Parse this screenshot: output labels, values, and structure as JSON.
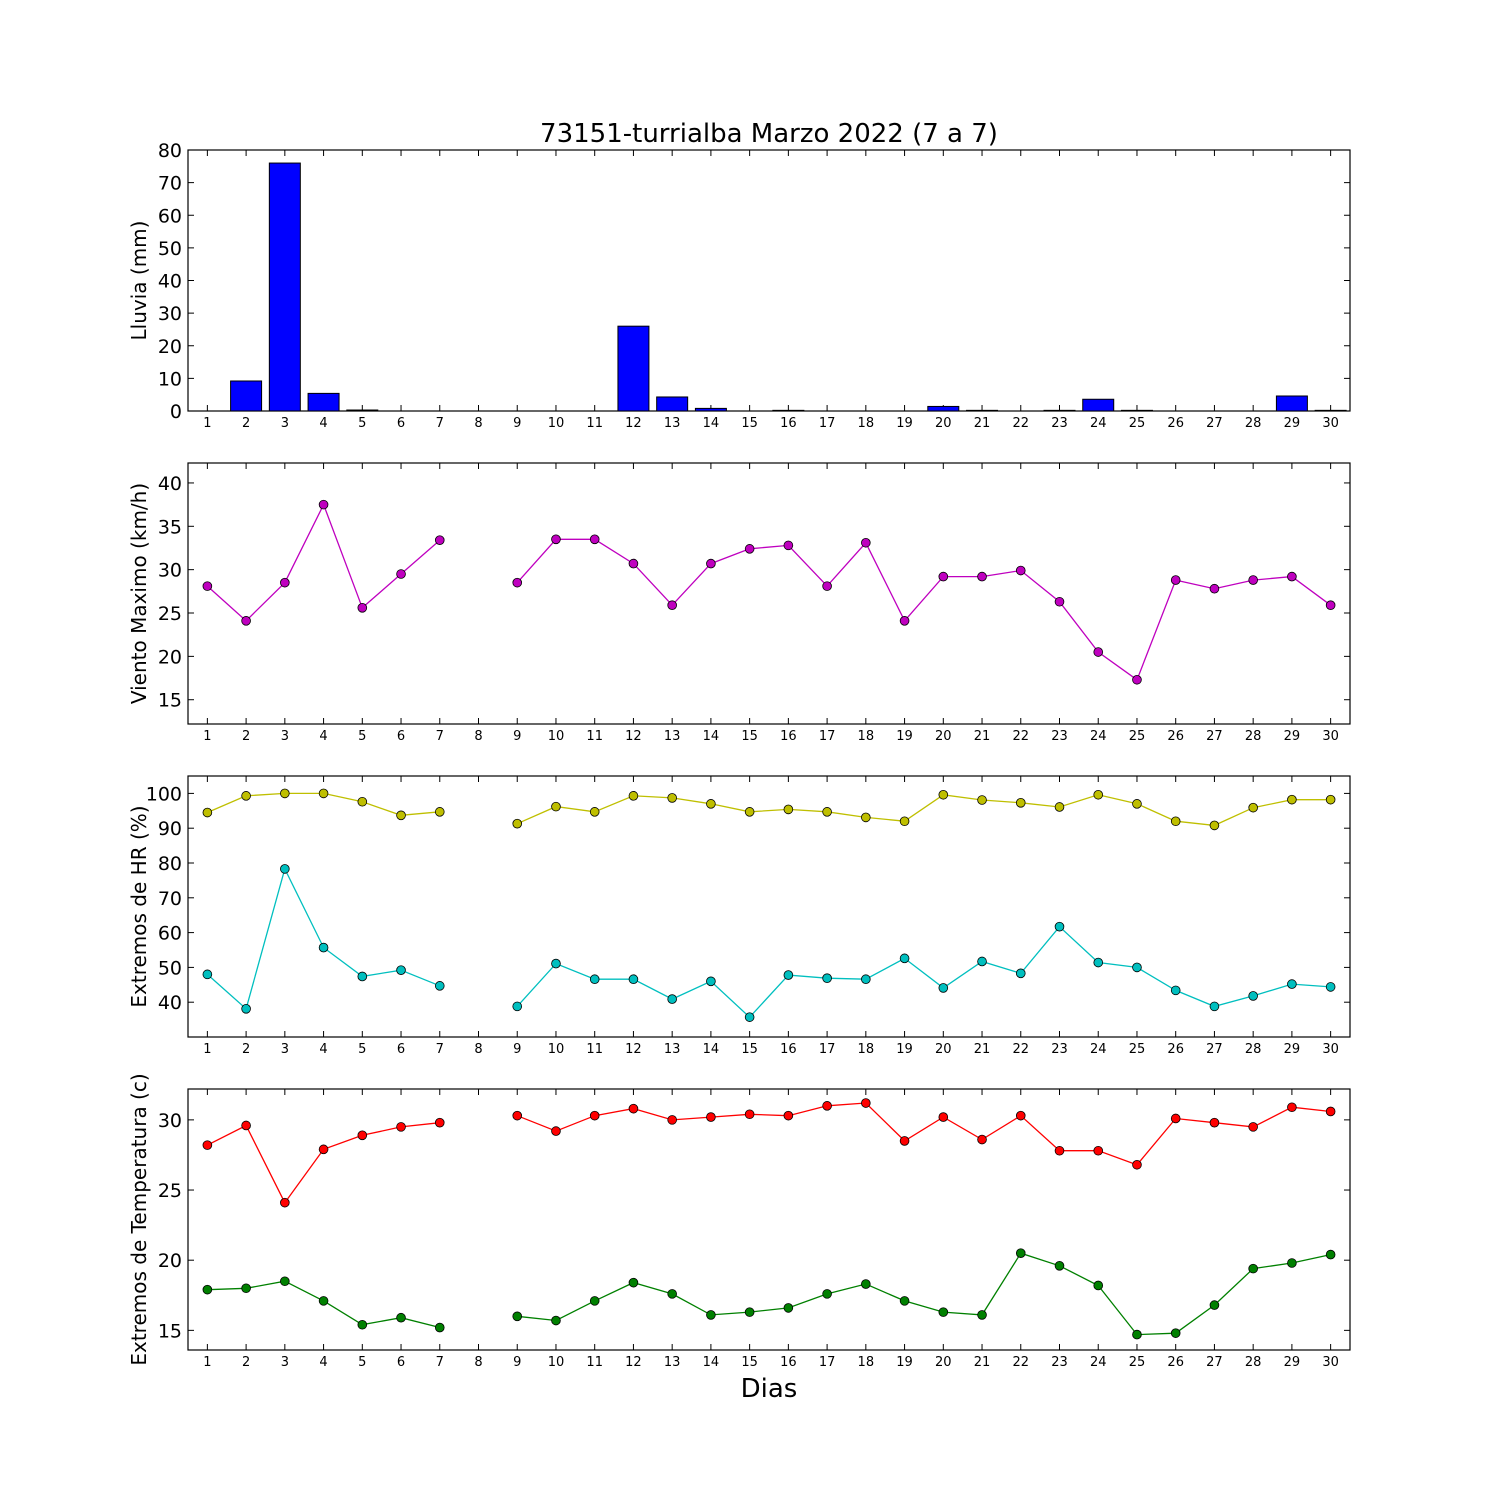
{
  "title": "73151-turrialba Marzo 2022  (7 a 7)",
  "xlabel": "Dias",
  "chart_data": [
    {
      "id": "lluvia",
      "type": "bar",
      "ylabel": "Lluvia (mm)",
      "ylim": [
        0,
        80
      ],
      "yticks": [
        0,
        10,
        20,
        30,
        40,
        50,
        60,
        70,
        80
      ],
      "x": [
        1,
        2,
        3,
        4,
        5,
        6,
        7,
        8,
        9,
        10,
        11,
        12,
        13,
        14,
        15,
        16,
        17,
        18,
        19,
        20,
        21,
        22,
        23,
        24,
        25,
        26,
        27,
        28,
        29,
        30
      ],
      "series": [
        {
          "color": "#0000ff",
          "values": [
            0,
            9.2,
            76,
            5.4,
            0.3,
            0,
            0,
            0,
            0,
            0,
            0,
            26,
            4.3,
            0.8,
            0,
            0.2,
            0,
            0,
            0,
            1.4,
            0.2,
            0,
            0.2,
            3.6,
            0.2,
            0,
            0,
            0,
            4.6,
            0.2
          ]
        }
      ]
    },
    {
      "id": "viento",
      "type": "line",
      "ylabel": "Viento Maximo (km/h)",
      "ylim": [
        12.2,
        42.3
      ],
      "yticks": [
        15,
        20,
        25,
        30,
        35,
        40
      ],
      "x": [
        1,
        2,
        3,
        4,
        5,
        6,
        7,
        8,
        9,
        10,
        11,
        12,
        13,
        14,
        15,
        16,
        17,
        18,
        19,
        20,
        21,
        22,
        23,
        24,
        25,
        26,
        27,
        28,
        29,
        30
      ],
      "series": [
        {
          "color": "#bf00bf",
          "values": [
            28.1,
            24.1,
            28.5,
            37.5,
            25.6,
            29.5,
            33.4,
            null,
            28.5,
            33.5,
            33.5,
            30.7,
            25.9,
            30.7,
            32.4,
            32.8,
            28.1,
            33.1,
            24.1,
            29.2,
            29.2,
            29.9,
            26.3,
            20.5,
            17.3,
            28.8,
            27.8,
            28.8,
            29.2,
            25.9
          ]
        }
      ]
    },
    {
      "id": "hr",
      "type": "line",
      "ylabel": "Extremos de HR (%)",
      "ylim": [
        30,
        105
      ],
      "yticks": [
        40,
        50,
        60,
        70,
        80,
        90,
        100
      ],
      "x": [
        1,
        2,
        3,
        4,
        5,
        6,
        7,
        8,
        9,
        10,
        11,
        12,
        13,
        14,
        15,
        16,
        17,
        18,
        19,
        20,
        21,
        22,
        23,
        24,
        25,
        26,
        27,
        28,
        29,
        30
      ],
      "series": [
        {
          "color": "#bfbf00",
          "values": [
            94.5,
            99.3,
            100,
            100,
            97.6,
            93.7,
            94.7,
            null,
            91.3,
            96.2,
            94.7,
            99.3,
            98.7,
            97,
            94.7,
            95.4,
            94.7,
            93.1,
            92,
            99.6,
            98.1,
            97.3,
            96.1,
            99.6,
            97,
            92,
            90.8,
            95.9,
            98.2,
            98.2
          ]
        },
        {
          "color": "#00bfbf",
          "values": [
            48,
            38.1,
            78.3,
            55.7,
            47.4,
            49.2,
            44.7,
            null,
            38.8,
            51.1,
            46.6,
            46.6,
            40.9,
            46,
            35.7,
            47.8,
            46.9,
            46.6,
            52.6,
            44.1,
            51.7,
            48.3,
            61.7,
            51.4,
            50,
            43.4,
            38.8,
            41.8,
            45.2,
            44.4
          ]
        }
      ]
    },
    {
      "id": "temp",
      "type": "line",
      "ylabel": "Extremos de Temperatura (c)",
      "ylim": [
        13.6,
        32.2
      ],
      "yticks": [
        15,
        20,
        25,
        30
      ],
      "x": [
        1,
        2,
        3,
        4,
        5,
        6,
        7,
        8,
        9,
        10,
        11,
        12,
        13,
        14,
        15,
        16,
        17,
        18,
        19,
        20,
        21,
        22,
        23,
        24,
        25,
        26,
        27,
        28,
        29,
        30
      ],
      "series": [
        {
          "color": "#ff0000",
          "values": [
            28.2,
            29.6,
            24.1,
            27.9,
            28.9,
            29.5,
            29.8,
            null,
            30.3,
            29.2,
            30.3,
            30.8,
            30,
            30.2,
            30.4,
            30.3,
            31,
            31.2,
            28.5,
            30.2,
            28.6,
            30.3,
            27.8,
            27.8,
            26.8,
            30.1,
            29.8,
            29.5,
            30.9,
            30.6
          ]
        },
        {
          "color": "#008000",
          "values": [
            17.9,
            18,
            18.5,
            17.1,
            15.4,
            15.9,
            15.2,
            null,
            16,
            15.7,
            17.1,
            18.4,
            17.6,
            16.1,
            16.3,
            16.6,
            17.6,
            18.3,
            17.1,
            16.3,
            16.1,
            20.5,
            19.6,
            18.2,
            14.7,
            14.8,
            16.8,
            19.4,
            19.8,
            20.4
          ]
        }
      ]
    }
  ]
}
